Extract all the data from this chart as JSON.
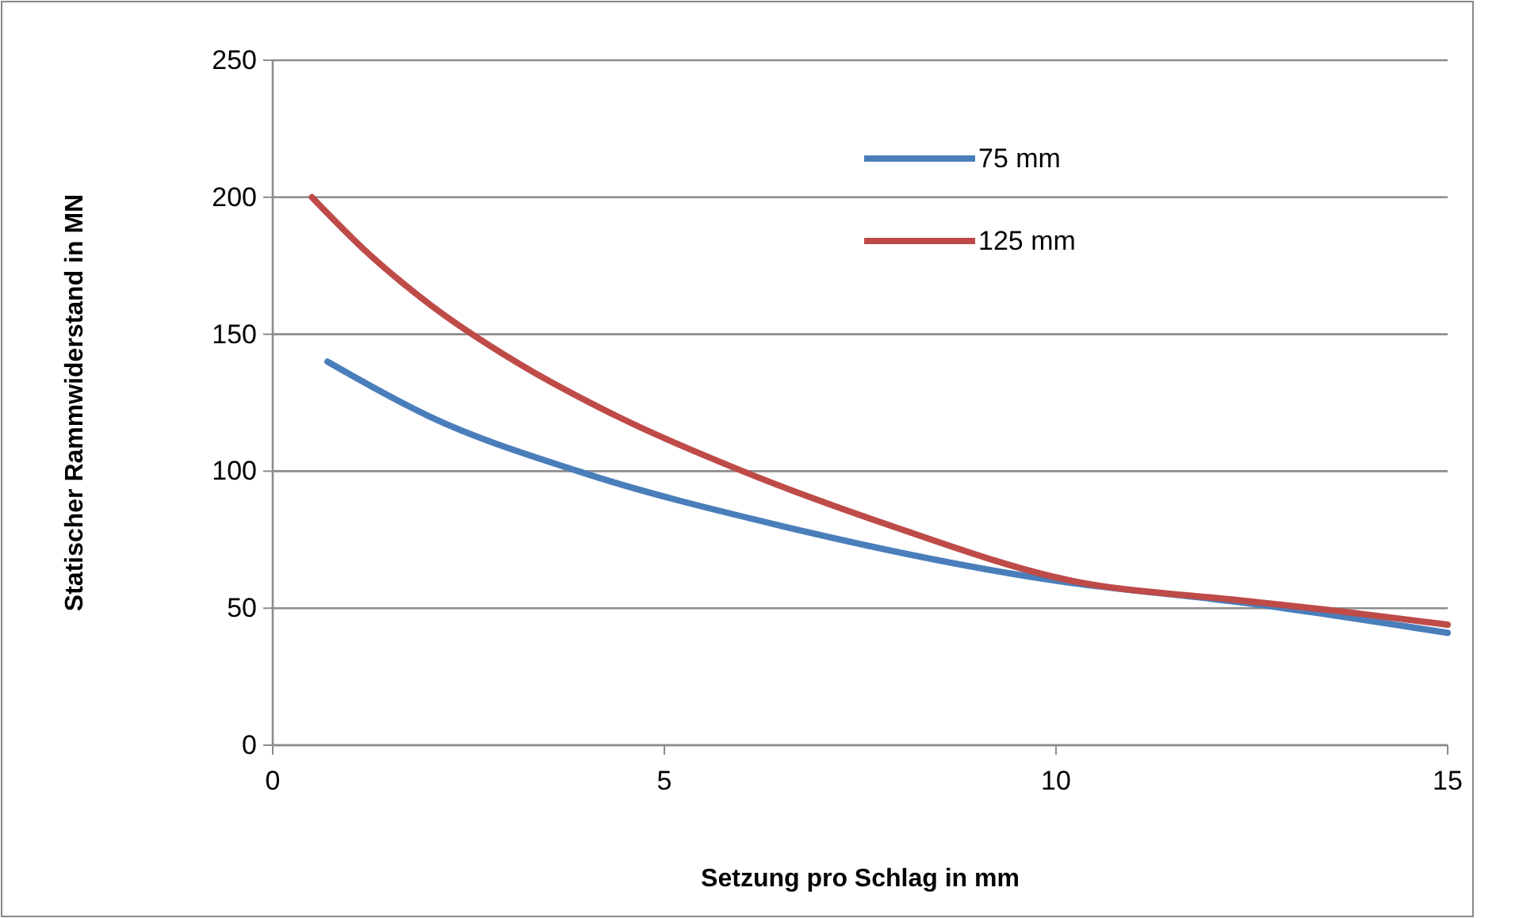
{
  "chart_data": {
    "type": "line",
    "xlabel": "Setzung pro Schlag in mm",
    "ylabel": "Statischer Rammwiderstand in MN",
    "xlim": [
      0,
      15
    ],
    "xticks": [
      0,
      5,
      10,
      15
    ],
    "ylim": [
      0,
      250
    ],
    "yticks": [
      0,
      50,
      100,
      150,
      200,
      250
    ],
    "grid": "y",
    "legend": "top right",
    "marker": "none",
    "line_style": "solid",
    "series": [
      {
        "name": "75 mm",
        "color": "#4a7ebb",
        "x": [
          0.7,
          2,
          3.9,
          6.5,
          10,
          12.4,
          15
        ],
        "values": [
          140,
          120,
          100,
          80,
          60,
          52,
          41
        ]
      },
      {
        "name": "125 mm",
        "color": "#be4b48",
        "x": [
          0.5,
          1.2,
          2,
          3.1,
          4.4,
          6,
          7.9,
          10.2,
          12.3,
          13.6,
          15
        ],
        "values": [
          200,
          180,
          161,
          140,
          120,
          100,
          80,
          60,
          53,
          49,
          44
        ]
      }
    ]
  }
}
